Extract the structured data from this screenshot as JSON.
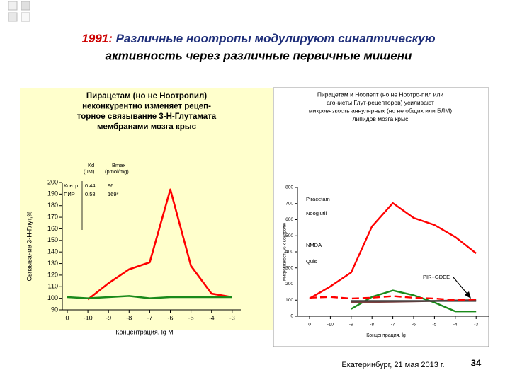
{
  "slide": {
    "title_prefix": "1991:",
    "title_lines": [
      "Различные ноотропы модулируют синаптическую",
      "активность через различные первичные мишени"
    ],
    "footer": "Екатеринбург, 21 мая 2013 г.",
    "page": "34"
  },
  "chart_data": [
    {
      "type": "line",
      "title_lines": [
        "Пирацетам (но не Ноотропил)",
        "неконкурентно изменяет рецеп-",
        "торное связывание 3-Н-Глутамата",
        "мембранами мозга крыс"
      ],
      "y_label": "Связывание 3-Н-Глут,%",
      "x_label": "Концентрация, lg M",
      "categories": [
        "0",
        "-10",
        "-9",
        "-8",
        "-7",
        "-6",
        "-5",
        "-4",
        "-3"
      ],
      "series": [
        {
          "color": "#ff0000",
          "values": [
            null,
            99,
            113,
            125,
            131,
            194,
            128,
            104,
            101
          ]
        },
        {
          "color": "#1a8a1a",
          "values": [
            101,
            100,
            101,
            102,
            100,
            101,
            101,
            101,
            101
          ]
        }
      ],
      "ylim": [
        90,
        200
      ],
      "yticks": [
        90,
        100,
        110,
        120,
        130,
        140,
        150,
        160,
        170,
        180,
        190,
        200
      ],
      "table": {
        "header": [
          "Kd",
          "Bmax"
        ],
        "units": [
          "(uM)",
          "(pmol/mg)"
        ],
        "rows": [
          [
            "Контр.",
            "0.44",
            "96"
          ],
          [
            "ПИР",
            "0.58",
            "169*"
          ]
        ]
      }
    },
    {
      "type": "line",
      "title_lines": [
        "Пирацетам и Ноопепт (но не Ноотро-пил или",
        "агонисты Глут-рецепторов) усиливают",
        "микровязкость аннулярных (но не общих или БЛМ)",
        "липидов мозга крыс"
      ],
      "y_label": "Микровязкость,% к Контролю",
      "x_label": "Концентрация, lg",
      "categories": [
        "0",
        "-10",
        "-9",
        "-8",
        "-7",
        "-6",
        "-5",
        "-4",
        "-3"
      ],
      "series": [
        {
          "name": "Piracetam",
          "color": "#ff0000",
          "values": [
            110,
            185,
            272,
            558,
            703,
            611,
            567,
            492,
            391
          ]
        },
        {
          "name": "Nooglutil",
          "color": "#1a8a1a",
          "values": [
            null,
            null,
            45,
            120,
            160,
            130,
            85,
            30,
            30
          ]
        },
        {
          "name": "NMDA",
          "color": "#7f3f3f",
          "values": [
            null,
            null,
            85,
            88,
            90,
            92,
            95,
            98,
            100
          ]
        },
        {
          "name": "Quis",
          "color": "#404040",
          "values": [
            null,
            null,
            95,
            95,
            95,
            95,
            95,
            95,
            95
          ]
        },
        {
          "name": "PIR+GDEE",
          "color": "#ff0000",
          "dashed": true,
          "values": [
            115,
            120,
            110,
            115,
            125,
            115,
            110,
            100,
            105
          ]
        }
      ],
      "ylim": [
        0,
        800
      ],
      "yticks": [
        0,
        100,
        200,
        300,
        400,
        500,
        600,
        700,
        800
      ]
    }
  ]
}
